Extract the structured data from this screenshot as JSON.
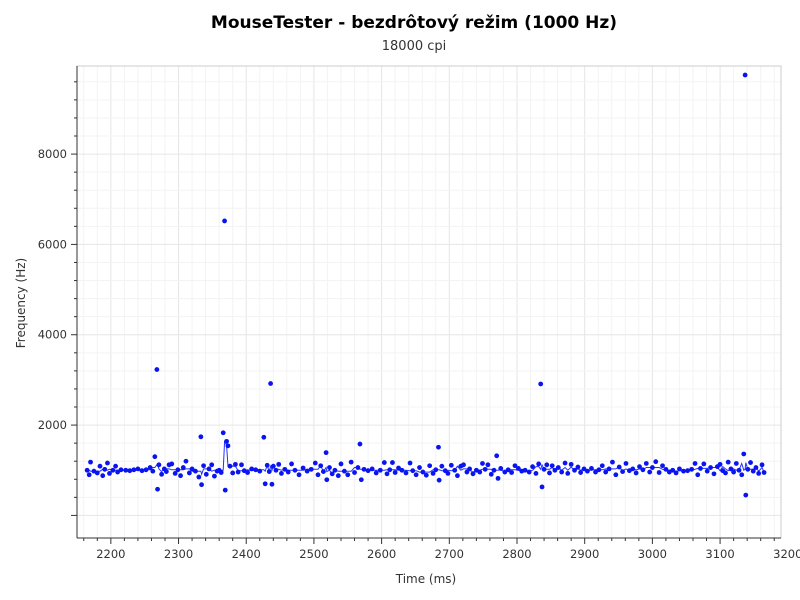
{
  "chart_data": {
    "type": "scatter",
    "title": "MouseTester - bezdrôtový režim (1000 Hz)",
    "subtitle": "18000 cpi",
    "xlabel": "Time (ms)",
    "ylabel": "Frequency (Hz)",
    "xlim": [
      2150,
      3190
    ],
    "ylim": [
      -500,
      9950
    ],
    "x_ticks": [
      2200,
      2300,
      2400,
      2500,
      2600,
      2700,
      2800,
      2900,
      3000,
      3100,
      3200
    ],
    "y_ticks": [
      2000,
      4000,
      6000,
      8000
    ],
    "grid": true,
    "legend": "none",
    "colors": {
      "points": "#0a14f0",
      "line": "#2233ff"
    },
    "series": [
      {
        "points": [
          [
            2165,
            1000
          ],
          [
            2168,
            900
          ],
          [
            2170,
            1180
          ],
          [
            2175,
            980
          ],
          [
            2180,
            940
          ],
          [
            2184,
            1090
          ],
          [
            2188,
            880
          ],
          [
            2191,
            1020
          ],
          [
            2195,
            1160
          ],
          [
            2198,
            930
          ],
          [
            2203,
            1000
          ],
          [
            2207,
            1090
          ],
          [
            2210,
            960
          ],
          [
            2215,
            1010
          ],
          [
            2222,
            1000
          ],
          [
            2228,
            990
          ],
          [
            2234,
            1010
          ],
          [
            2240,
            1030
          ],
          [
            2246,
            990
          ],
          [
            2252,
            1010
          ],
          [
            2258,
            1060
          ],
          [
            2262,
            980
          ],
          [
            2265,
            1300
          ],
          [
            2268,
            3230
          ],
          [
            2269,
            580
          ],
          [
            2271,
            1120
          ],
          [
            2275,
            910
          ],
          [
            2279,
            1030
          ],
          [
            2282,
            970
          ],
          [
            2286,
            1120
          ],
          [
            2290,
            1140
          ],
          [
            2295,
            930
          ],
          [
            2299,
            1010
          ],
          [
            2303,
            880
          ],
          [
            2307,
            1060
          ],
          [
            2311,
            1200
          ],
          [
            2316,
            940
          ],
          [
            2320,
            1030
          ],
          [
            2325,
            980
          ],
          [
            2330,
            850
          ],
          [
            2333,
            1740
          ],
          [
            2334,
            680
          ],
          [
            2337,
            1100
          ],
          [
            2341,
            910
          ],
          [
            2345,
            1030
          ],
          [
            2349,
            1120
          ],
          [
            2353,
            870
          ],
          [
            2357,
            980
          ],
          [
            2360,
            1000
          ],
          [
            2363,
            950
          ],
          [
            2366,
            1830
          ],
          [
            2368,
            6520
          ],
          [
            2369,
            560
          ],
          [
            2371,
            1640
          ],
          [
            2373,
            1540
          ],
          [
            2376,
            1090
          ],
          [
            2380,
            940
          ],
          [
            2384,
            1130
          ],
          [
            2388,
            960
          ],
          [
            2393,
            1120
          ],
          [
            2397,
            990
          ],
          [
            2402,
            950
          ],
          [
            2408,
            1030
          ],
          [
            2414,
            1010
          ],
          [
            2420,
            980
          ],
          [
            2426,
            1730
          ],
          [
            2428,
            700
          ],
          [
            2431,
            1110
          ],
          [
            2434,
            970
          ],
          [
            2436,
            2920
          ],
          [
            2438,
            690
          ],
          [
            2440,
            1090
          ],
          [
            2444,
            1000
          ],
          [
            2448,
            1130
          ],
          [
            2452,
            930
          ],
          [
            2457,
            1020
          ],
          [
            2462,
            960
          ],
          [
            2467,
            1140
          ],
          [
            2472,
            1000
          ],
          [
            2478,
            900
          ],
          [
            2484,
            1050
          ],
          [
            2490,
            980
          ],
          [
            2496,
            1020
          ],
          [
            2502,
            1160
          ],
          [
            2506,
            900
          ],
          [
            2510,
            1100
          ],
          [
            2514,
            970
          ],
          [
            2518,
            1390
          ],
          [
            2519,
            790
          ],
          [
            2523,
            1060
          ],
          [
            2527,
            920
          ],
          [
            2531,
            1000
          ],
          [
            2536,
            880
          ],
          [
            2540,
            1140
          ],
          [
            2545,
            980
          ],
          [
            2550,
            900
          ],
          [
            2555,
            1180
          ],
          [
            2560,
            950
          ],
          [
            2565,
            1060
          ],
          [
            2568,
            1580
          ],
          [
            2570,
            790
          ],
          [
            2574,
            1020
          ],
          [
            2580,
            990
          ],
          [
            2586,
            1030
          ],
          [
            2592,
            940
          ],
          [
            2598,
            1000
          ],
          [
            2604,
            1170
          ],
          [
            2608,
            920
          ],
          [
            2612,
            1010
          ],
          [
            2616,
            1170
          ],
          [
            2620,
            950
          ],
          [
            2625,
            1050
          ],
          [
            2630,
            1000
          ],
          [
            2636,
            940
          ],
          [
            2642,
            1160
          ],
          [
            2646,
            990
          ],
          [
            2651,
            900
          ],
          [
            2656,
            1060
          ],
          [
            2661,
            960
          ],
          [
            2666,
            890
          ],
          [
            2671,
            1100
          ],
          [
            2676,
            930
          ],
          [
            2680,
            1010
          ],
          [
            2684,
            1510
          ],
          [
            2685,
            780
          ],
          [
            2689,
            1090
          ],
          [
            2694,
            990
          ],
          [
            2698,
            930
          ],
          [
            2703,
            1110
          ],
          [
            2708,
            1000
          ],
          [
            2712,
            880
          ],
          [
            2717,
            1090
          ],
          [
            2721,
            1120
          ],
          [
            2726,
            960
          ],
          [
            2730,
            1030
          ],
          [
            2735,
            920
          ],
          [
            2740,
            1000
          ],
          [
            2745,
            960
          ],
          [
            2749,
            1150
          ],
          [
            2753,
            1020
          ],
          [
            2757,
            1120
          ],
          [
            2762,
            910
          ],
          [
            2766,
            1000
          ],
          [
            2770,
            1320
          ],
          [
            2772,
            820
          ],
          [
            2776,
            1040
          ],
          [
            2782,
            960
          ],
          [
            2787,
            1010
          ],
          [
            2792,
            950
          ],
          [
            2797,
            1100
          ],
          [
            2802,
            1040
          ],
          [
            2807,
            980
          ],
          [
            2812,
            1000
          ],
          [
            2818,
            960
          ],
          [
            2823,
            1080
          ],
          [
            2828,
            930
          ],
          [
            2832,
            1140
          ],
          [
            2835,
            2910
          ],
          [
            2837,
            630
          ],
          [
            2840,
            1020
          ],
          [
            2844,
            1120
          ],
          [
            2848,
            940
          ],
          [
            2852,
            1100
          ],
          [
            2856,
            1000
          ],
          [
            2861,
            1060
          ],
          [
            2866,
            960
          ],
          [
            2871,
            1160
          ],
          [
            2875,
            930
          ],
          [
            2880,
            1130
          ],
          [
            2885,
            1000
          ],
          [
            2890,
            1070
          ],
          [
            2894,
            950
          ],
          [
            2899,
            1030
          ],
          [
            2904,
            980
          ],
          [
            2910,
            1040
          ],
          [
            2916,
            960
          ],
          [
            2921,
            1010
          ],
          [
            2926,
            1100
          ],
          [
            2931,
            960
          ],
          [
            2936,
            1030
          ],
          [
            2941,
            1180
          ],
          [
            2946,
            900
          ],
          [
            2951,
            1070
          ],
          [
            2956,
            970
          ],
          [
            2961,
            1150
          ],
          [
            2966,
            990
          ],
          [
            2971,
            1030
          ],
          [
            2976,
            940
          ],
          [
            2981,
            1080
          ],
          [
            2986,
            1010
          ],
          [
            2991,
            1150
          ],
          [
            2996,
            960
          ],
          [
            3000,
            1060
          ],
          [
            3005,
            1190
          ],
          [
            3010,
            950
          ],
          [
            3015,
            1100
          ],
          [
            3020,
            1020
          ],
          [
            3025,
            960
          ],
          [
            3030,
            1000
          ],
          [
            3035,
            940
          ],
          [
            3040,
            1030
          ],
          [
            3046,
            980
          ],
          [
            3052,
            990
          ],
          [
            3058,
            1020
          ],
          [
            3063,
            1150
          ],
          [
            3067,
            900
          ],
          [
            3071,
            1040
          ],
          [
            3076,
            1140
          ],
          [
            3081,
            980
          ],
          [
            3086,
            1060
          ],
          [
            3091,
            920
          ],
          [
            3096,
            1080
          ],
          [
            3100,
            1130
          ],
          [
            3104,
            990
          ],
          [
            3108,
            940
          ],
          [
            3112,
            1180
          ],
          [
            3116,
            1030
          ],
          [
            3120,
            960
          ],
          [
            3124,
            1150
          ],
          [
            3128,
            1000
          ],
          [
            3132,
            900
          ],
          [
            3135,
            1360
          ],
          [
            3137,
            9750
          ],
          [
            3138,
            450
          ],
          [
            3141,
            1020
          ],
          [
            3145,
            1170
          ],
          [
            3149,
            980
          ],
          [
            3153,
            1060
          ],
          [
            3157,
            930
          ],
          [
            3162,
            1120
          ],
          [
            3165,
            950
          ]
        ]
      }
    ]
  }
}
